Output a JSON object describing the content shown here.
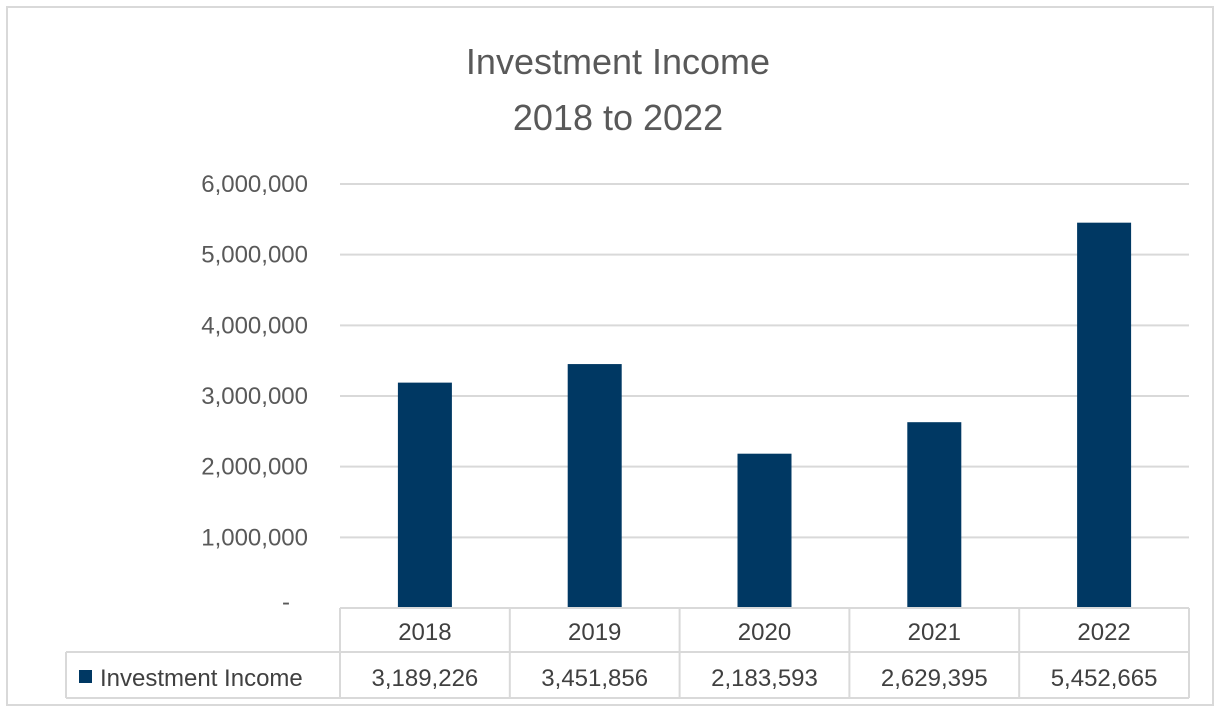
{
  "colors": {
    "bar": "#003863",
    "gridline": "#d9d9d9",
    "text": "#595959",
    "table_border": "#d9d9d9"
  },
  "chart_data": {
    "type": "bar",
    "title": "Investment Income",
    "subtitle": "2018 to 2022",
    "categories": [
      "2018",
      "2019",
      "2020",
      "2021",
      "2022"
    ],
    "series": [
      {
        "name": "Investment Income",
        "values": [
          3189226,
          3451856,
          2183593,
          2629395,
          5452665
        ],
        "display_values": [
          "3,189,226",
          "3,451,856",
          "2,183,593",
          "2,629,395",
          "5,452,665"
        ]
      }
    ],
    "ylim": [
      0,
      6000000
    ],
    "yticks": [
      "-",
      "1,000,000",
      "2,000,000",
      "3,000,000",
      "4,000,000",
      "5,000,000",
      "6,000,000"
    ],
    "grid": true,
    "legend": "data-table-left",
    "data_table": true
  }
}
